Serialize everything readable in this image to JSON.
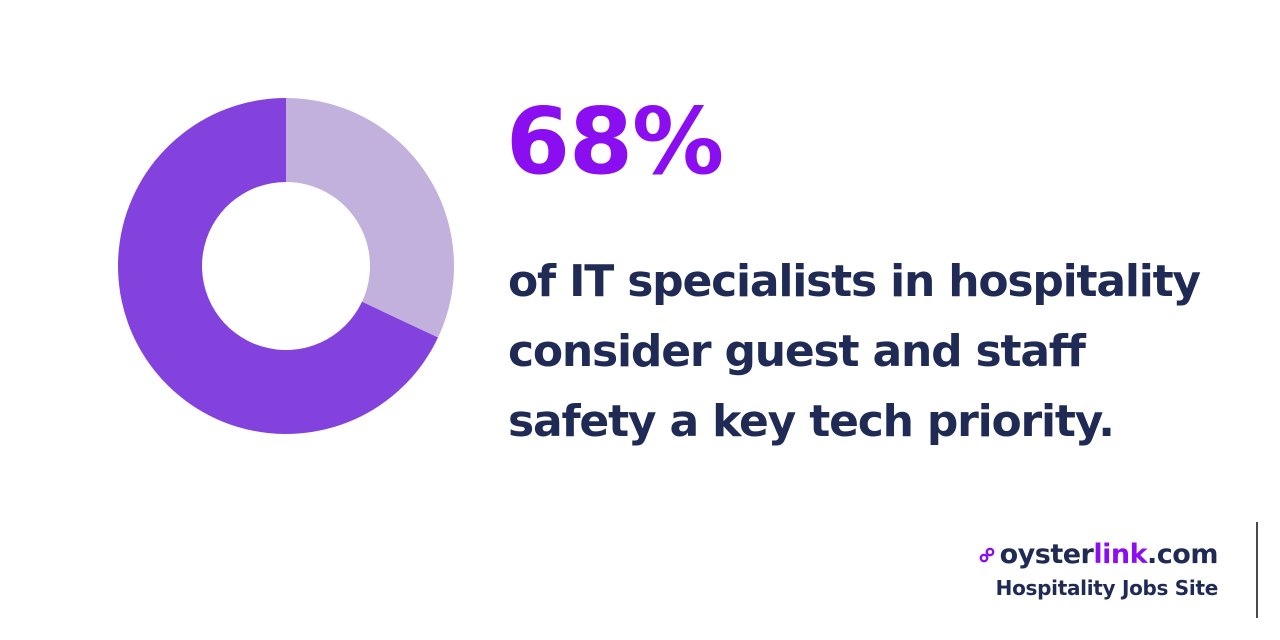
{
  "chart_data": {
    "type": "pie",
    "style": "donut",
    "slices": [
      {
        "value": 68,
        "color": "#8342dd"
      },
      {
        "value": 32,
        "color": "#c2b1dd"
      }
    ]
  },
  "stat": {
    "value": "68%",
    "color": "#8b0ef0"
  },
  "description": {
    "lines": [
      "of IT specialists in hospitality",
      "consider guest and staff",
      "safety a key tech priority."
    ],
    "color": "#1f2a55"
  },
  "brand": {
    "name_part1": "oyster",
    "name_part2": "link",
    "name_part3": ".com",
    "tagline": "Hospitality Jobs Site",
    "icon": "link-icon",
    "primary_color": "#1f2a55",
    "accent_color": "#8b0ef0"
  },
  "colors": {
    "edge_line": "#4a4a4a"
  }
}
